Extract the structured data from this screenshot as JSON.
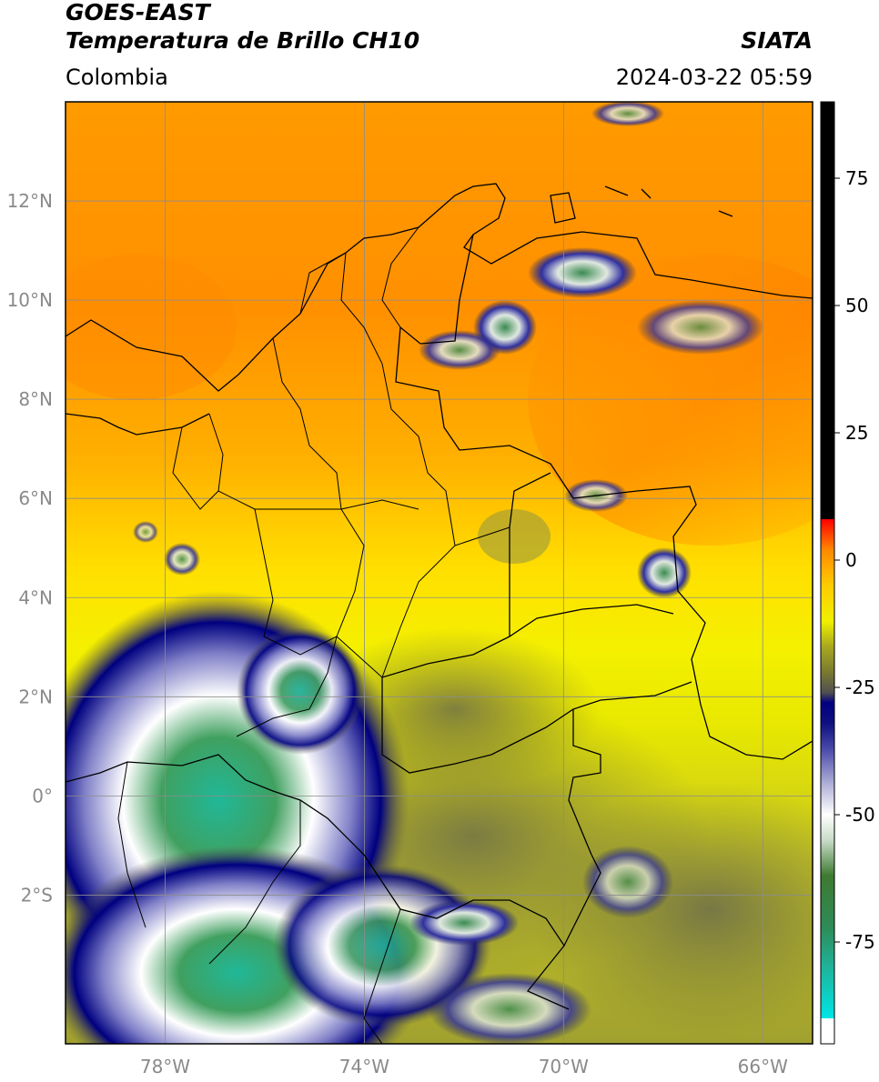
{
  "header": {
    "satellite": "GOES-EAST",
    "product": "Temperatura de Brillo CH10",
    "organization": "SIATA",
    "region": "Colombia",
    "timestamp": "2024-03-22 05:59"
  },
  "map": {
    "lon_range": [
      -80,
      -65
    ],
    "lat_range": [
      -5,
      14
    ],
    "grid": true,
    "lat_ticks": [
      {
        "value": 12,
        "label": "12°N"
      },
      {
        "value": 10,
        "label": "10°N"
      },
      {
        "value": 8,
        "label": "8°N"
      },
      {
        "value": 6,
        "label": "6°N"
      },
      {
        "value": 4,
        "label": "4°N"
      },
      {
        "value": 2,
        "label": "2°N"
      },
      {
        "value": 0,
        "label": "0°"
      },
      {
        "value": -2,
        "label": "2°S"
      }
    ],
    "lon_ticks": [
      {
        "value": -78,
        "label": "78°W"
      },
      {
        "value": -74,
        "label": "74°W"
      },
      {
        "value": -70,
        "label": "70°W"
      },
      {
        "value": -66,
        "label": "66°W"
      }
    ]
  },
  "colorbar": {
    "range": [
      -95,
      90
    ],
    "ticks": [
      {
        "value": 75,
        "label": "75"
      },
      {
        "value": 50,
        "label": "50"
      },
      {
        "value": 25,
        "label": "25"
      },
      {
        "value": 0,
        "label": "0"
      },
      {
        "value": -25,
        "label": "-25"
      },
      {
        "value": -50,
        "label": "-50"
      },
      {
        "value": -75,
        "label": "-75"
      }
    ],
    "stops": [
      {
        "value": -95,
        "color": "#ffffff"
      },
      {
        "value": -90,
        "color": "#ffffff"
      },
      {
        "value": -90,
        "color": "#00e5e5"
      },
      {
        "value": -80,
        "color": "#1fb39a"
      },
      {
        "value": -72,
        "color": "#2e8b57"
      },
      {
        "value": -62,
        "color": "#3e7a30"
      },
      {
        "value": -55,
        "color": "#c8dcc8"
      },
      {
        "value": -50,
        "color": "#ffffff"
      },
      {
        "value": -44,
        "color": "#b0b0d8"
      },
      {
        "value": -37,
        "color": "#4848a8"
      },
      {
        "value": -32,
        "color": "#101080"
      },
      {
        "value": -28,
        "color": "#000080"
      },
      {
        "value": -26,
        "color": "#505050"
      },
      {
        "value": -22,
        "color": "#7a7a30"
      },
      {
        "value": -17,
        "color": "#a8a820"
      },
      {
        "value": -12,
        "color": "#f0f000"
      },
      {
        "value": -5,
        "color": "#ffcc00"
      },
      {
        "value": 2,
        "color": "#ff8800"
      },
      {
        "value": 8,
        "color": "#ff0000"
      },
      {
        "value": 8,
        "color": "#000000"
      },
      {
        "value": 90,
        "color": "#000000"
      }
    ]
  }
}
